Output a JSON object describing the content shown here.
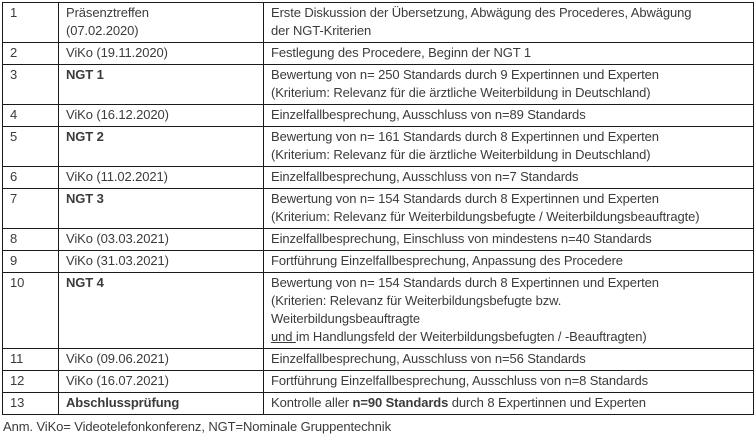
{
  "table": {
    "rows": [
      {
        "num": "1",
        "event": "Präsenztreffen\n(07.02.2020)",
        "bold_event": false,
        "desc": [
          {
            "t": "Erste Diskussion der Übersetzung, Abwägung des Procederes, Abwägung\nder NGT-Kriterien"
          }
        ]
      },
      {
        "num": "2",
        "event": "ViKo (19.11.2020)",
        "bold_event": false,
        "desc": [
          {
            "t": "Festlegung des Procedere, Beginn der NGT 1"
          }
        ]
      },
      {
        "num": "3",
        "event": "NGT 1",
        "bold_event": true,
        "desc": [
          {
            "t": "Bewertung von n= 250 Standards durch 9 Expertinnen und Experten\n(Kriterium: Relevanz für die ärztliche Weiterbildung in Deutschland)"
          }
        ]
      },
      {
        "num": "4",
        "event": "ViKo (16.12.2020)",
        "bold_event": false,
        "desc": [
          {
            "t": "Einzelfallbesprechung, Ausschluss von n=89 Standards"
          }
        ]
      },
      {
        "num": "5",
        "event": "NGT 2",
        "bold_event": true,
        "desc": [
          {
            "t": "Bewertung von n= 161 Standards durch 8 Expertinnen und Experten\n(Kriterium: Relevanz für die ärztliche Weiterbildung in Deutschland)"
          }
        ]
      },
      {
        "num": "6",
        "event": "ViKo (11.02.2021)",
        "bold_event": false,
        "desc": [
          {
            "t": "Einzelfallbesprechung, Ausschluss von n=7 Standards"
          }
        ]
      },
      {
        "num": "7",
        "event": "NGT 3",
        "bold_event": true,
        "desc": [
          {
            "t": "Bewertung von n= 154 Standards durch 8 Expertinnen und Experten\n(Kriterium: Relevanz für Weiterbildungsbefugte / Weiterbildungsbeauftragte)"
          }
        ]
      },
      {
        "num": "8",
        "event": "ViKo (03.03.2021)",
        "bold_event": false,
        "desc": [
          {
            "t": "Einzelfallbesprechung, Einschluss von mindestens n=40 Standards"
          }
        ]
      },
      {
        "num": "9",
        "event": "ViKo (31.03.2021)",
        "bold_event": false,
        "desc": [
          {
            "t": "Fortführung Einzelfallbesprechung, Anpassung des Procedere"
          }
        ]
      },
      {
        "num": "10",
        "event": "NGT 4",
        "bold_event": true,
        "desc": [
          {
            "t": "Bewertung von n= 154 Standards durch 8 Expertinnen und Experten\n(Kriterien: Relevanz für Weiterbildungsbefugte bzw.\nWeiterbildungsbeauftragte\n"
          },
          {
            "t": "und ",
            "u": true
          },
          {
            "t": "im Handlungsfeld der Weiterbildungsbefugten / -Beauftragten)"
          }
        ]
      },
      {
        "num": "11",
        "event": "ViKo (09.06.2021)",
        "bold_event": false,
        "desc": [
          {
            "t": "Einzelfallbesprechung, Ausschluss von n=56 Standards"
          }
        ]
      },
      {
        "num": "12",
        "event": "ViKo (16.07.2021)",
        "bold_event": false,
        "desc": [
          {
            "t": "Fortführung Einzelfallbesprechung, Ausschluss von n=8 Standards"
          }
        ]
      },
      {
        "num": "13",
        "event": "Abschlussprüfung",
        "bold_event": true,
        "desc": [
          {
            "t": "Kontrolle aller "
          },
          {
            "t": "n=90 Standards",
            "b": true
          },
          {
            "t": " durch 8 Expertinnen und Experten"
          }
        ]
      }
    ]
  },
  "footnote": "Anm. ViKo= Videotelefonkonferenz, NGT=Nominale Gruppentechnik"
}
